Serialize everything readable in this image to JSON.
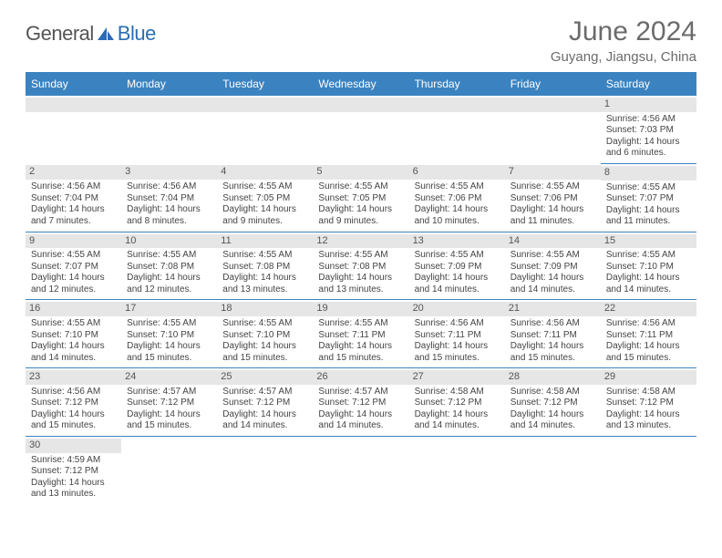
{
  "brand": {
    "part1": "General",
    "part2": "Blue"
  },
  "title": "June 2024",
  "location": "Guyang, Jiangsu, China",
  "colors": {
    "header_bg": "#3b83c0",
    "header_text": "#ffffff",
    "divider": "#3b83c0",
    "dayhead_bg": "#e6e6e6",
    "body_text": "#444444",
    "title_text": "#6b6b6b"
  },
  "fonts": {
    "title_size": 30,
    "subtitle_size": 15,
    "weekday_size": 12,
    "body_size": 10,
    "daynum_size": 11
  },
  "weekdays": [
    "Sunday",
    "Monday",
    "Tuesday",
    "Wednesday",
    "Thursday",
    "Friday",
    "Saturday"
  ],
  "weeks": [
    [
      null,
      null,
      null,
      null,
      null,
      null,
      {
        "n": "1",
        "sr": "Sunrise: 4:56 AM",
        "ss": "Sunset: 7:03 PM",
        "dl": "Daylight: 14 hours and 6 minutes."
      }
    ],
    [
      {
        "n": "2",
        "sr": "Sunrise: 4:56 AM",
        "ss": "Sunset: 7:04 PM",
        "dl": "Daylight: 14 hours and 7 minutes."
      },
      {
        "n": "3",
        "sr": "Sunrise: 4:56 AM",
        "ss": "Sunset: 7:04 PM",
        "dl": "Daylight: 14 hours and 8 minutes."
      },
      {
        "n": "4",
        "sr": "Sunrise: 4:55 AM",
        "ss": "Sunset: 7:05 PM",
        "dl": "Daylight: 14 hours and 9 minutes."
      },
      {
        "n": "5",
        "sr": "Sunrise: 4:55 AM",
        "ss": "Sunset: 7:05 PM",
        "dl": "Daylight: 14 hours and 9 minutes."
      },
      {
        "n": "6",
        "sr": "Sunrise: 4:55 AM",
        "ss": "Sunset: 7:06 PM",
        "dl": "Daylight: 14 hours and 10 minutes."
      },
      {
        "n": "7",
        "sr": "Sunrise: 4:55 AM",
        "ss": "Sunset: 7:06 PM",
        "dl": "Daylight: 14 hours and 11 minutes."
      },
      {
        "n": "8",
        "sr": "Sunrise: 4:55 AM",
        "ss": "Sunset: 7:07 PM",
        "dl": "Daylight: 14 hours and 11 minutes."
      }
    ],
    [
      {
        "n": "9",
        "sr": "Sunrise: 4:55 AM",
        "ss": "Sunset: 7:07 PM",
        "dl": "Daylight: 14 hours and 12 minutes."
      },
      {
        "n": "10",
        "sr": "Sunrise: 4:55 AM",
        "ss": "Sunset: 7:08 PM",
        "dl": "Daylight: 14 hours and 12 minutes."
      },
      {
        "n": "11",
        "sr": "Sunrise: 4:55 AM",
        "ss": "Sunset: 7:08 PM",
        "dl": "Daylight: 14 hours and 13 minutes."
      },
      {
        "n": "12",
        "sr": "Sunrise: 4:55 AM",
        "ss": "Sunset: 7:08 PM",
        "dl": "Daylight: 14 hours and 13 minutes."
      },
      {
        "n": "13",
        "sr": "Sunrise: 4:55 AM",
        "ss": "Sunset: 7:09 PM",
        "dl": "Daylight: 14 hours and 14 minutes."
      },
      {
        "n": "14",
        "sr": "Sunrise: 4:55 AM",
        "ss": "Sunset: 7:09 PM",
        "dl": "Daylight: 14 hours and 14 minutes."
      },
      {
        "n": "15",
        "sr": "Sunrise: 4:55 AM",
        "ss": "Sunset: 7:10 PM",
        "dl": "Daylight: 14 hours and 14 minutes."
      }
    ],
    [
      {
        "n": "16",
        "sr": "Sunrise: 4:55 AM",
        "ss": "Sunset: 7:10 PM",
        "dl": "Daylight: 14 hours and 14 minutes."
      },
      {
        "n": "17",
        "sr": "Sunrise: 4:55 AM",
        "ss": "Sunset: 7:10 PM",
        "dl": "Daylight: 14 hours and 15 minutes."
      },
      {
        "n": "18",
        "sr": "Sunrise: 4:55 AM",
        "ss": "Sunset: 7:10 PM",
        "dl": "Daylight: 14 hours and 15 minutes."
      },
      {
        "n": "19",
        "sr": "Sunrise: 4:55 AM",
        "ss": "Sunset: 7:11 PM",
        "dl": "Daylight: 14 hours and 15 minutes."
      },
      {
        "n": "20",
        "sr": "Sunrise: 4:56 AM",
        "ss": "Sunset: 7:11 PM",
        "dl": "Daylight: 14 hours and 15 minutes."
      },
      {
        "n": "21",
        "sr": "Sunrise: 4:56 AM",
        "ss": "Sunset: 7:11 PM",
        "dl": "Daylight: 14 hours and 15 minutes."
      },
      {
        "n": "22",
        "sr": "Sunrise: 4:56 AM",
        "ss": "Sunset: 7:11 PM",
        "dl": "Daylight: 14 hours and 15 minutes."
      }
    ],
    [
      {
        "n": "23",
        "sr": "Sunrise: 4:56 AM",
        "ss": "Sunset: 7:12 PM",
        "dl": "Daylight: 14 hours and 15 minutes."
      },
      {
        "n": "24",
        "sr": "Sunrise: 4:57 AM",
        "ss": "Sunset: 7:12 PM",
        "dl": "Daylight: 14 hours and 15 minutes."
      },
      {
        "n": "25",
        "sr": "Sunrise: 4:57 AM",
        "ss": "Sunset: 7:12 PM",
        "dl": "Daylight: 14 hours and 14 minutes."
      },
      {
        "n": "26",
        "sr": "Sunrise: 4:57 AM",
        "ss": "Sunset: 7:12 PM",
        "dl": "Daylight: 14 hours and 14 minutes."
      },
      {
        "n": "27",
        "sr": "Sunrise: 4:58 AM",
        "ss": "Sunset: 7:12 PM",
        "dl": "Daylight: 14 hours and 14 minutes."
      },
      {
        "n": "28",
        "sr": "Sunrise: 4:58 AM",
        "ss": "Sunset: 7:12 PM",
        "dl": "Daylight: 14 hours and 14 minutes."
      },
      {
        "n": "29",
        "sr": "Sunrise: 4:58 AM",
        "ss": "Sunset: 7:12 PM",
        "dl": "Daylight: 14 hours and 13 minutes."
      }
    ],
    [
      {
        "n": "30",
        "sr": "Sunrise: 4:59 AM",
        "ss": "Sunset: 7:12 PM",
        "dl": "Daylight: 14 hours and 13 minutes."
      },
      null,
      null,
      null,
      null,
      null,
      null
    ]
  ]
}
